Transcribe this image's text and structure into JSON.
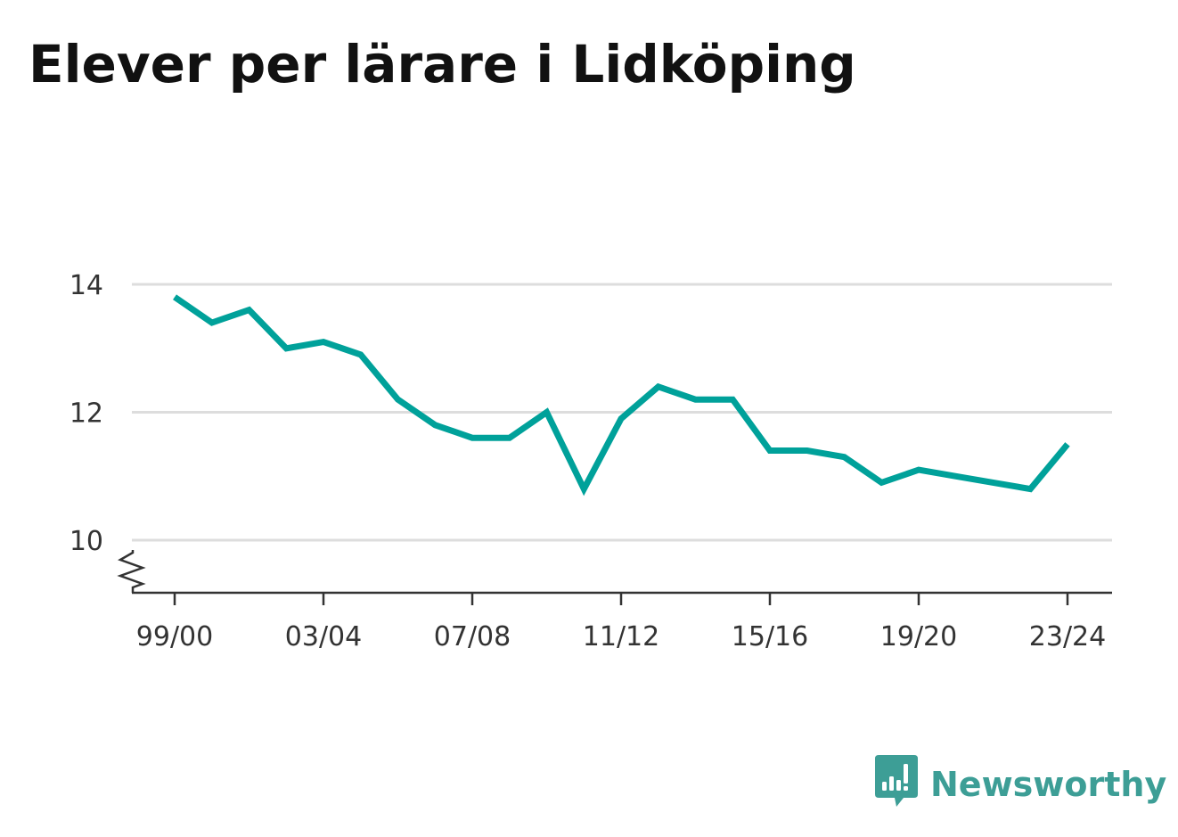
{
  "title": "Elever per lärare i Lidköping",
  "brand": {
    "name": "Newsworthy",
    "icon": "newsworthy-logo-icon",
    "color": "#3d9e96"
  },
  "colors": {
    "line": "#00a19a",
    "grid": "#dddddd",
    "axis": "#333333",
    "text": "#333333"
  },
  "chart_data": {
    "type": "line",
    "title": "Elever per lärare i Lidköping",
    "xlabel": "",
    "ylabel": "",
    "ylim": [
      9.2,
      14.2
    ],
    "y_break": true,
    "grid": true,
    "y_ticks": [
      10,
      12,
      14
    ],
    "x_ticks": [
      "99/00",
      "03/04",
      "07/08",
      "11/12",
      "15/16",
      "19/20",
      "23/24"
    ],
    "categories": [
      "99/00",
      "00/01",
      "01/02",
      "02/03",
      "03/04",
      "04/05",
      "05/06",
      "06/07",
      "07/08",
      "08/09",
      "09/10",
      "10/11",
      "11/12",
      "12/13",
      "13/14",
      "14/15",
      "15/16",
      "16/17",
      "17/18",
      "18/19",
      "19/20",
      "20/21",
      "21/22",
      "22/23",
      "23/24"
    ],
    "series": [
      {
        "values": [
          13.8,
          13.4,
          13.6,
          13.0,
          13.1,
          12.9,
          12.2,
          11.8,
          11.6,
          11.6,
          12.0,
          10.8,
          11.9,
          12.4,
          12.2,
          12.2,
          11.4,
          11.4,
          11.3,
          10.9,
          11.1,
          11.0,
          10.9,
          10.8,
          11.5
        ]
      }
    ]
  }
}
